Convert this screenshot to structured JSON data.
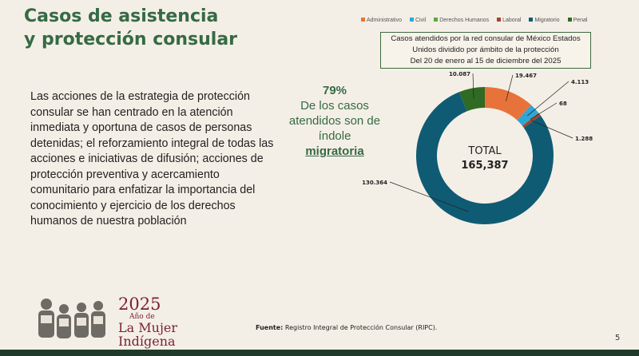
{
  "slide": {
    "title_line1": "Casos de asistencia",
    "title_line2": "y protección consular",
    "body": "Las acciones de la estrategia de protección consular se han centrado en la atención inmediata y oportuna de casos de personas detenidas; el reforzamiento integral de todas las acciones e iniciativas de difusión; acciones de protección preventiva y acercamiento comunitario para enfatizar la importancia del conocimiento y ejercicio de los derechos humanos de nuestra población",
    "highlight_pct": "79%",
    "highlight_text": "De los casos atendidos son de índole",
    "highlight_word": "migratoria",
    "source_label": "Fuente:",
    "source_text": "Registro Integral de Protección Consular (RIPC).",
    "page_number": "5",
    "logo_year": "2025",
    "logo_line1": "Año de",
    "logo_line2": "La Mujer",
    "logo_line3": "Indígena"
  },
  "chart_data": {
    "type": "pie",
    "variant": "donut",
    "title_lines": [
      "Casos atendidos por la red consular de México Estados",
      "Unidos dividido por ámbito de la protección",
      "Del 20 de enero al 15 de diciembre del 2025"
    ],
    "center_label": "TOTAL",
    "center_value": "165,387",
    "legend_position": "top",
    "series": [
      {
        "name": "Administrativo",
        "value": 19467,
        "label": "19.467",
        "color": "#e8733a"
      },
      {
        "name": "Civil",
        "value": 4113,
        "label": "4.113",
        "color": "#2ea7d6"
      },
      {
        "name": "Derechos Humanos",
        "value": 68,
        "label": "68",
        "color": "#5ea83e"
      },
      {
        "name": "Laboral",
        "value": 1288,
        "label": "1.288",
        "color": "#a4452b"
      },
      {
        "name": "Migratorio",
        "value": 130364,
        "label": "130.364",
        "color": "#0f5b74"
      },
      {
        "name": "Penal",
        "value": 10087,
        "label": "10.087",
        "color": "#2f6b24"
      }
    ]
  }
}
